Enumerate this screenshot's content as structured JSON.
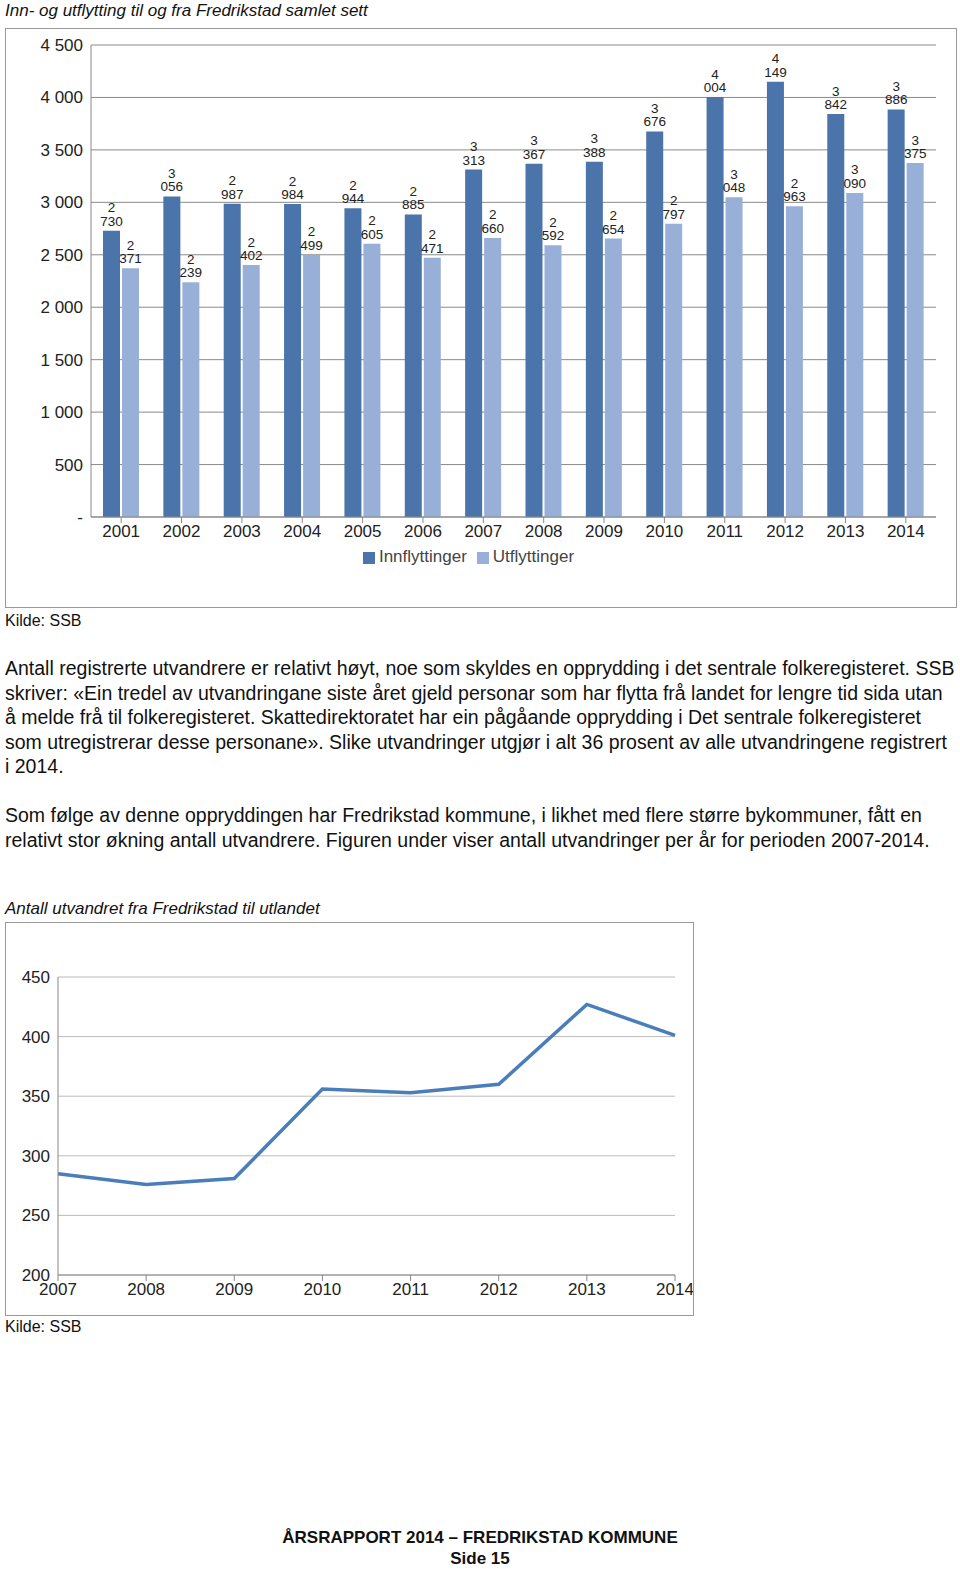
{
  "chart_data": [
    {
      "type": "bar",
      "title": "Inn- og utflytting til og fra Fredrikstad samlet sett",
      "source": "Kilde: SSB",
      "categories": [
        "2001",
        "2002",
        "2003",
        "2004",
        "2005",
        "2006",
        "2007",
        "2008",
        "2009",
        "2010",
        "2011",
        "2012",
        "2013",
        "2014"
      ],
      "series": [
        {
          "name": "Innflyttinger",
          "color": "#4a74aa",
          "values": [
            2730,
            3056,
            2987,
            2984,
            2944,
            2885,
            3313,
            3367,
            3388,
            3676,
            4004,
            4149,
            3842,
            3886
          ],
          "value_labels": [
            "2 730",
            "3 056",
            "2 987",
            "2 984",
            "2 944",
            "2 885",
            "3 313",
            "3 367",
            "3 388",
            "3 676",
            "4 004",
            "4 149",
            "3 842",
            "3 886"
          ]
        },
        {
          "name": "Utflyttinger",
          "color": "#98b0d8",
          "values": [
            2371,
            2239,
            2402,
            2499,
            2605,
            2471,
            2660,
            2592,
            2654,
            2797,
            3048,
            2963,
            3090,
            3375
          ],
          "value_labels": [
            "2 371",
            "2 239",
            "2 402",
            "2 499",
            "2 605",
            "2 471",
            "2 660",
            "2 592",
            "2 654",
            "2 797",
            "3 048",
            "2 963",
            "3 090",
            "3 375"
          ]
        }
      ],
      "ylim": [
        0,
        4500
      ],
      "yticks": [
        {
          "value": 0,
          "label": "-"
        },
        500,
        {
          "value": 1000,
          "label": "1 000"
        },
        {
          "value": 1500,
          "label": "1 500"
        },
        {
          "value": 2000,
          "label": "2 000"
        },
        {
          "value": 2500,
          "label": "2 500"
        },
        {
          "value": 3000,
          "label": "3 000"
        },
        {
          "value": 3500,
          "label": "3 500"
        },
        {
          "value": 4000,
          "label": "4 000"
        },
        {
          "value": 4500,
          "label": "4 500"
        }
      ],
      "grid": true,
      "legend": "bottom",
      "data_labels": true
    },
    {
      "type": "line",
      "title": "Antall utvandret fra Fredrikstad til utlandet",
      "source": "Kilde: SSB",
      "categories": [
        "2007",
        "2008",
        "2009",
        "2010",
        "2011",
        "2012",
        "2013",
        "2014"
      ],
      "values": [
        285,
        276,
        281,
        356,
        353,
        360,
        427,
        401
      ],
      "color": "#4a7ebb",
      "ylim": [
        200,
        450
      ],
      "yticks": [
        200,
        250,
        300,
        350,
        400,
        450
      ],
      "grid": true
    }
  ],
  "document": {
    "paragraphs": [
      "Antall registrerte utvandrere er relativt høyt, noe som skyldes en opprydding i det sentrale folkeregisteret. SSB skriver: «Ein tredel av utvandringane siste året gjeld personar som har flytta frå landet for lengre tid sida utan å melde frå til folkeregisteret. Skattedirektoratet har ein pågåande opprydding i Det sentrale folkeregisteret som utregistrerar desse personane». Slike utvandringer utgjør i alt 36 prosent av alle utvandringene registrert i 2014.",
      "Som følge av denne oppryddingen har Fredrikstad kommune, i likhet med flere større bykommuner, fått en relativt stor økning antall utvandrere. Figuren under viser antall utvandringer per år for perioden 2007-2014."
    ],
    "footer": [
      "ÅRSRAPPORT 2014 – FREDRIKSTAD KOMMUNE",
      "Side 15"
    ]
  }
}
